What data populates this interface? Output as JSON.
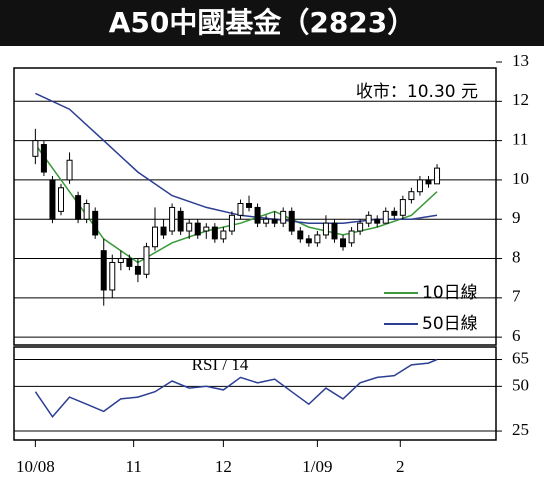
{
  "title": "A50中國基金（2823）",
  "chart_data": [
    {
      "type": "candlestick",
      "annotation": "收市：10.30 元",
      "xlim": [
        -2.5,
        53.9
      ],
      "xticks": [
        {
          "value": 0,
          "label": "10/08"
        },
        {
          "value": 11.5,
          "label": "11"
        },
        {
          "value": 22,
          "label": "12"
        },
        {
          "value": 33,
          "label": "1/09"
        },
        {
          "value": 42.7,
          "label": "2"
        }
      ],
      "ylim": [
        5.8,
        13.0
      ],
      "yticks": [
        6,
        7,
        8,
        9,
        10,
        11,
        12,
        13
      ],
      "grid": true,
      "open": [
        10.6,
        10.9,
        10.0,
        9.2,
        10.0,
        9.6,
        9.0,
        9.2,
        8.2,
        7.2,
        7.9,
        8.0,
        7.8,
        7.6,
        8.3,
        8.8,
        8.7,
        9.2,
        8.7,
        8.9,
        8.7,
        8.8,
        8.5,
        8.7,
        9.1,
        9.4,
        9.3,
        8.9,
        9.0,
        8.9,
        9.2,
        8.7,
        8.5,
        8.4,
        8.6,
        8.9,
        8.5,
        8.4,
        8.7,
        8.9,
        9.0,
        8.9,
        9.2,
        9.1,
        9.5,
        9.7,
        10.0,
        9.9
      ],
      "high": [
        11.3,
        11.0,
        10.1,
        9.9,
        10.7,
        9.7,
        9.5,
        9.3,
        8.5,
        8.1,
        8.2,
        8.1,
        8.0,
        8.4,
        9.3,
        9.0,
        9.4,
        9.3,
        9.0,
        9.0,
        8.9,
        8.9,
        8.8,
        9.2,
        9.5,
        9.6,
        9.4,
        9.1,
        9.2,
        9.3,
        9.3,
        8.8,
        8.6,
        8.7,
        9.1,
        9.0,
        8.6,
        8.8,
        9.0,
        9.2,
        9.1,
        9.3,
        9.3,
        9.6,
        9.8,
        10.1,
        10.1,
        10.4
      ],
      "low": [
        10.4,
        10.1,
        8.9,
        9.1,
        9.9,
        8.9,
        8.9,
        8.5,
        6.8,
        7.0,
        7.7,
        7.7,
        7.4,
        7.5,
        8.2,
        8.5,
        8.6,
        8.6,
        8.5,
        8.5,
        8.5,
        8.4,
        8.4,
        8.6,
        9.0,
        9.2,
        8.8,
        8.8,
        8.8,
        8.8,
        8.6,
        8.4,
        8.3,
        8.3,
        8.5,
        8.4,
        8.2,
        8.3,
        8.6,
        8.8,
        8.8,
        8.9,
        9.0,
        9.0,
        9.4,
        9.6,
        9.8,
        9.9
      ],
      "close": [
        11.0,
        10.2,
        9.0,
        9.8,
        10.5,
        9.0,
        9.4,
        8.6,
        7.2,
        7.9,
        8.0,
        7.8,
        7.6,
        8.3,
        8.8,
        8.6,
        9.3,
        8.7,
        8.9,
        8.6,
        8.8,
        8.5,
        8.7,
        9.1,
        9.4,
        9.3,
        8.9,
        9.0,
        8.9,
        9.2,
        8.7,
        8.5,
        8.4,
        8.6,
        8.9,
        8.5,
        8.3,
        8.7,
        8.9,
        9.1,
        8.9,
        9.2,
        9.1,
        9.5,
        9.7,
        10.0,
        9.9,
        10.3
      ],
      "series": [
        {
          "name": "10日線",
          "color": "#3a9a3a",
          "x": [
            0,
            4,
            8,
            12,
            16,
            20,
            24,
            28,
            32,
            36,
            40,
            44,
            47
          ],
          "values": [
            10.9,
            9.7,
            8.5,
            7.9,
            8.4,
            8.7,
            8.9,
            9.2,
            8.8,
            8.6,
            8.8,
            9.1,
            9.7
          ]
        },
        {
          "name": "50日線",
          "color": "#2b3e94",
          "x": [
            0,
            4,
            8,
            12,
            16,
            20,
            24,
            28,
            32,
            36,
            40,
            44,
            47
          ],
          "values": [
            12.2,
            11.8,
            11.0,
            10.2,
            9.6,
            9.3,
            9.1,
            9.0,
            8.9,
            8.9,
            9.0,
            9.0,
            9.1
          ]
        }
      ]
    },
    {
      "type": "line",
      "title": "RSI / 14",
      "xlim": [
        -2.5,
        53.9
      ],
      "ylim": [
        20,
        72
      ],
      "yticks": [
        25,
        50,
        65
      ],
      "grid": true,
      "series": [
        {
          "color": "#2b3e94",
          "x": [
            0,
            2,
            4,
            6,
            8,
            10,
            12,
            14,
            16,
            18,
            20,
            22,
            24,
            26,
            28,
            30,
            32,
            34,
            36,
            38,
            40,
            42,
            44,
            46,
            47
          ],
          "values": [
            47,
            33,
            44,
            40,
            36,
            43,
            44,
            47,
            53,
            49,
            50,
            48,
            55,
            52,
            54,
            47,
            40,
            49,
            43,
            52,
            55,
            56,
            62,
            63,
            65
          ]
        }
      ]
    }
  ]
}
